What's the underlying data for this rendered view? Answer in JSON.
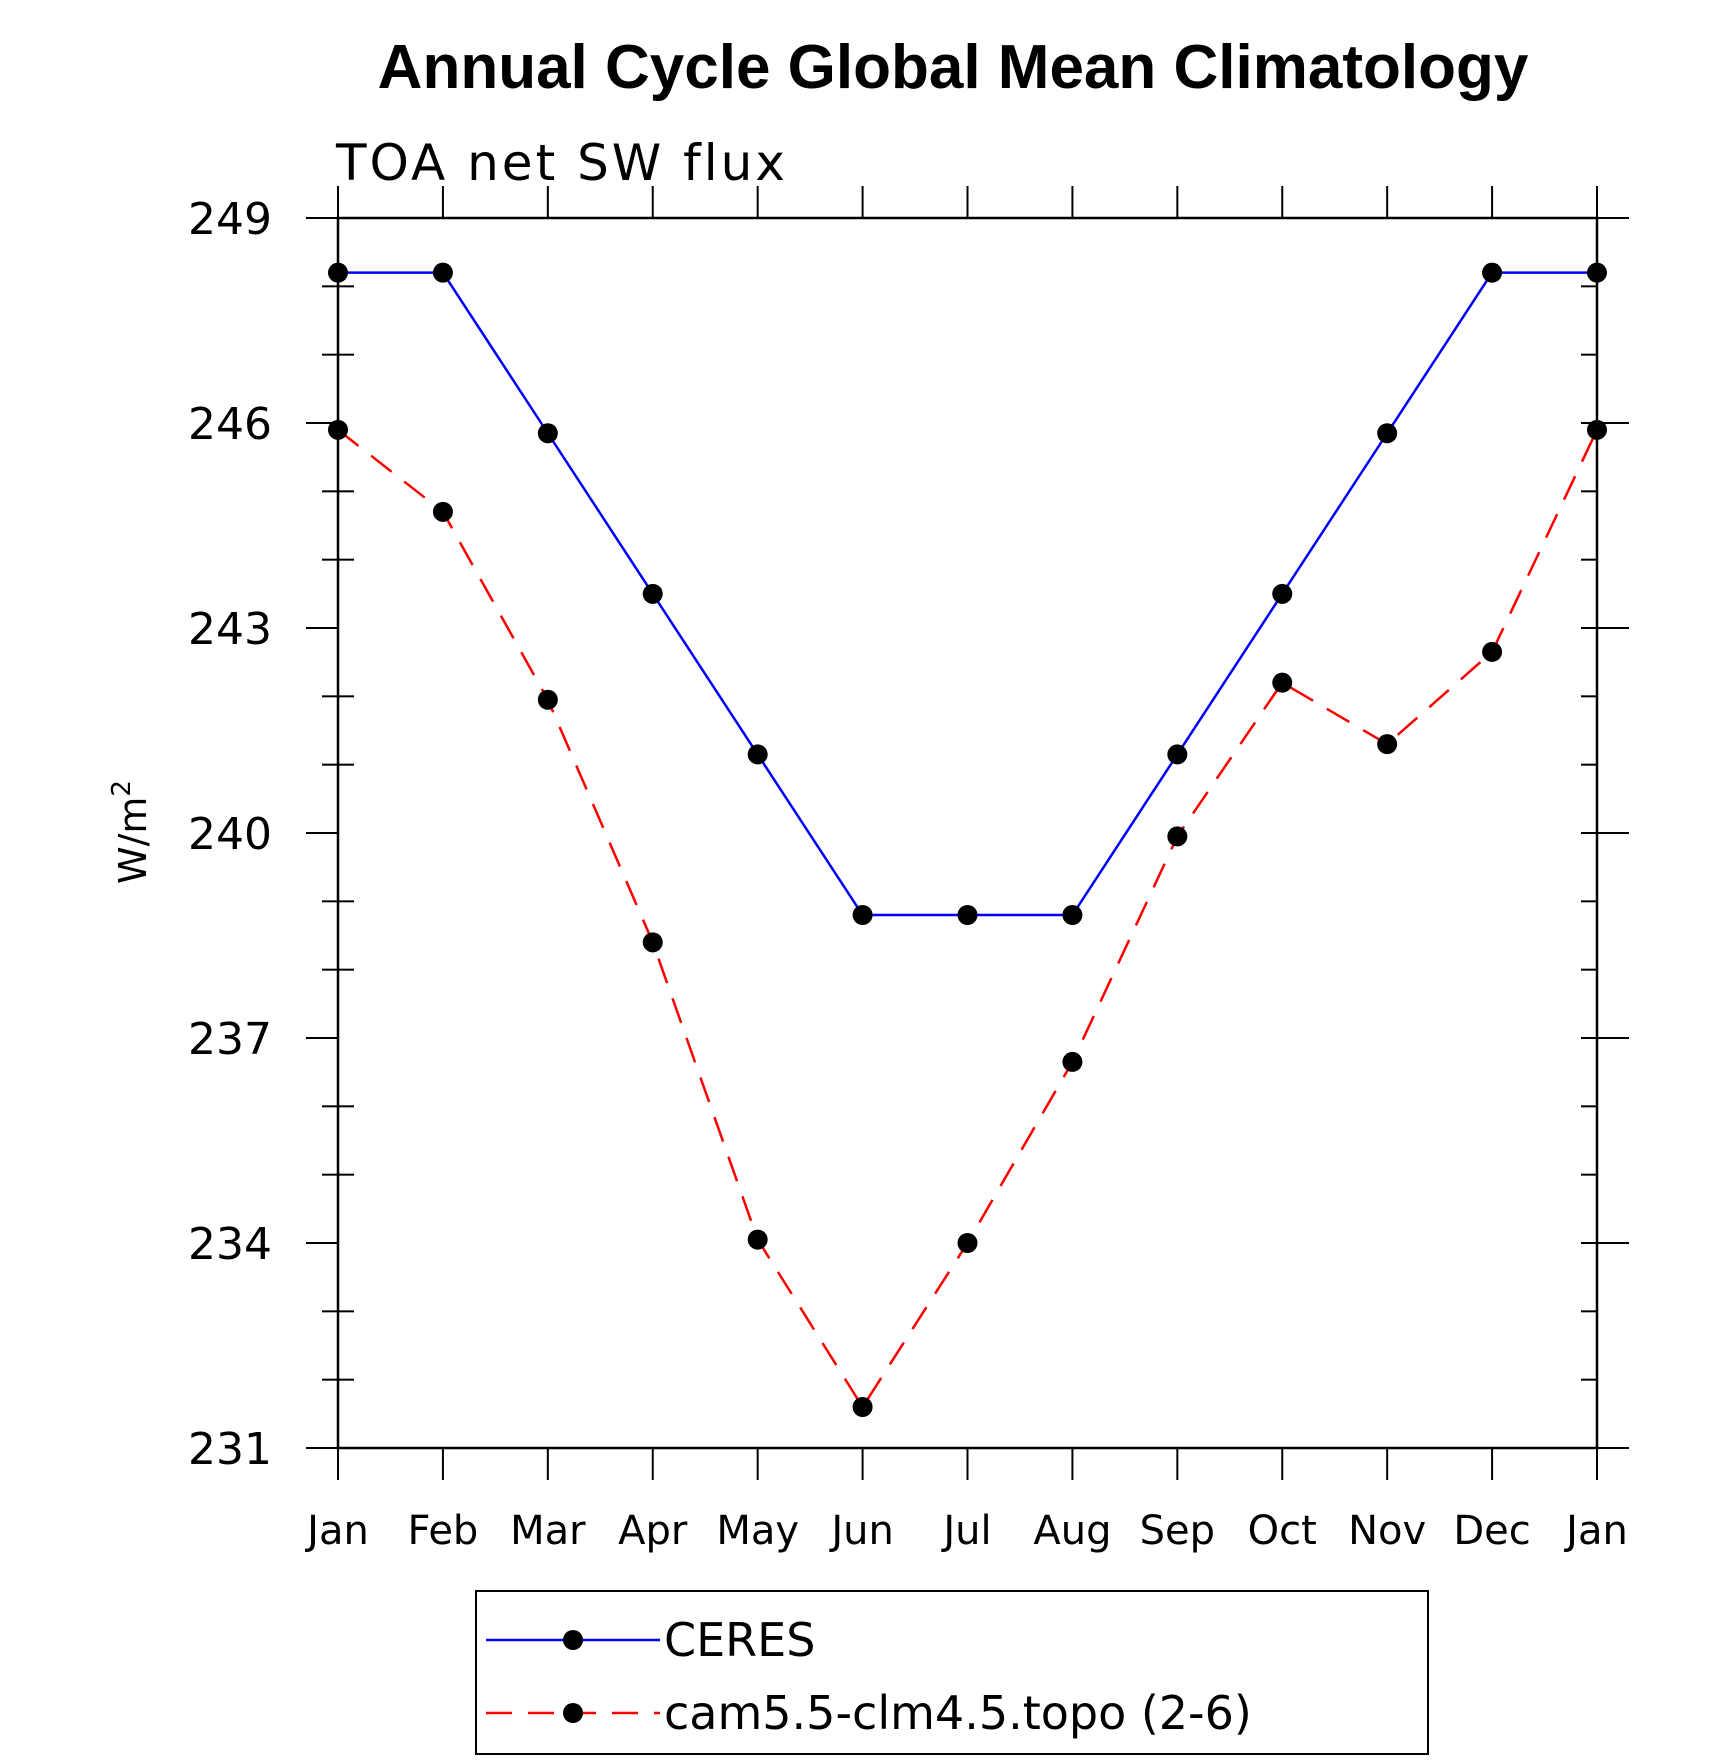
{
  "chart_data": {
    "type": "line",
    "title": "Annual Cycle Global Mean Climatology",
    "subtitle": "TOA net SW flux",
    "ylabel": "W/m",
    "ylabel_superscript": "2",
    "xlabel": "",
    "categories": [
      "Jan",
      "Feb",
      "Mar",
      "Apr",
      "May",
      "Jun",
      "Jul",
      "Aug",
      "Sep",
      "Oct",
      "Nov",
      "Dec",
      "Jan"
    ],
    "ylim": [
      231,
      249
    ],
    "yticks": [
      "231",
      "234",
      "237",
      "240",
      "243",
      "246",
      "249"
    ],
    "grid": false,
    "legend_placement": "bottom",
    "series": [
      {
        "name": "CERES",
        "color": "#0000ff",
        "line_style": "solid",
        "values": [
          248.2,
          248.2,
          245.85,
          243.5,
          241.15,
          238.8,
          238.8,
          238.8,
          241.15,
          243.5,
          245.85,
          248.2,
          248.2
        ]
      },
      {
        "name": "cam5.5-clm4.5.topo (2-6)",
        "color": "#ff0000",
        "line_style": "dashed",
        "values": [
          245.9,
          244.7,
          241.95,
          238.4,
          234.05,
          231.6,
          234.0,
          236.65,
          239.95,
          242.2,
          241.3,
          242.65,
          245.9
        ]
      }
    ]
  }
}
